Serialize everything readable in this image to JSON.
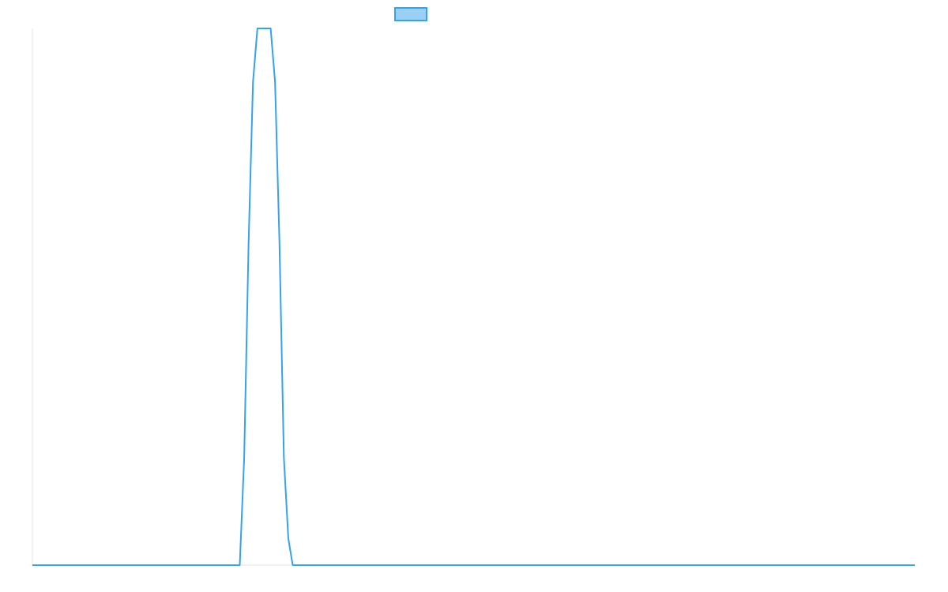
{
  "chart_data": {
    "type": "line",
    "title": "",
    "xlabel": "",
    "ylabel": "",
    "legend": {
      "placement": "top-center",
      "label": ""
    },
    "colors": {
      "line": "#36a2eb",
      "fill": "#9ad0f5",
      "axis": "#e6e6e6"
    },
    "grid": false,
    "xlim": [
      0,
      100
    ],
    "ylim": [
      0,
      1
    ],
    "series": [
      {
        "name": "",
        "x": [
          0,
          23.5,
          24.0,
          24.5,
          25.0,
          25.5,
          26.0,
          26.5,
          27.0,
          27.5,
          28.0,
          28.5,
          29.0,
          29.5,
          100
        ],
        "y": [
          0,
          0,
          0.2,
          0.6,
          0.9,
          1.0,
          1.0,
          1.0,
          1.0,
          0.9,
          0.6,
          0.2,
          0.05,
          0,
          0
        ]
      }
    ]
  }
}
